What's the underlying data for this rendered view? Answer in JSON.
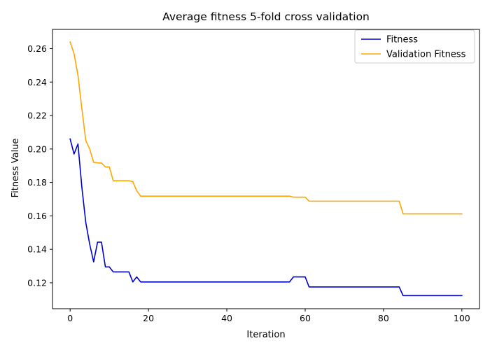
{
  "chart_data": {
    "type": "line",
    "title": "Average fitness 5-fold cross validation",
    "xlabel": "Iteration",
    "ylabel": "Fitness Value",
    "xlim": [
      -4.5,
      104.5
    ],
    "ylim": [
      0.1045,
      0.2715
    ],
    "xticks": [
      0,
      20,
      40,
      60,
      80,
      100
    ],
    "yticks": [
      0.12,
      0.14,
      0.16,
      0.18,
      0.2,
      0.22,
      0.24,
      0.26
    ],
    "ytick_labels": [
      "0.12",
      "0.14",
      "0.16",
      "0.18",
      "0.20",
      "0.22",
      "0.24",
      "0.26"
    ],
    "grid": false,
    "legend_position": "top-right",
    "series": [
      {
        "name": "Fitness",
        "color": "#0000cd",
        "x": [
          0,
          1,
          2,
          3,
          4,
          5,
          6,
          7,
          8,
          9,
          10,
          11,
          15,
          16,
          17,
          18,
          56,
          57,
          60,
          61,
          84,
          85,
          100
        ],
        "y": [
          0.206,
          0.197,
          0.203,
          0.177,
          0.156,
          0.143,
          0.1325,
          0.1443,
          0.1443,
          0.1295,
          0.1295,
          0.1265,
          0.1265,
          0.1205,
          0.1235,
          0.1205,
          0.1205,
          0.1235,
          0.1235,
          0.1175,
          0.1175,
          0.1123,
          0.1123
        ]
      },
      {
        "name": "Validation Fitness",
        "color": "#ffa500",
        "x": [
          0,
          1,
          2,
          3,
          4,
          5,
          6,
          7,
          8,
          9,
          10,
          11,
          15,
          16,
          17,
          18,
          56,
          57,
          60,
          61,
          84,
          85,
          100
        ],
        "y": [
          0.264,
          0.257,
          0.244,
          0.224,
          0.205,
          0.2,
          0.192,
          0.1917,
          0.1916,
          0.1893,
          0.1893,
          0.181,
          0.181,
          0.1805,
          0.175,
          0.1718,
          0.1718,
          0.1712,
          0.1712,
          0.1688,
          0.1688,
          0.1612,
          0.1612
        ]
      }
    ]
  }
}
